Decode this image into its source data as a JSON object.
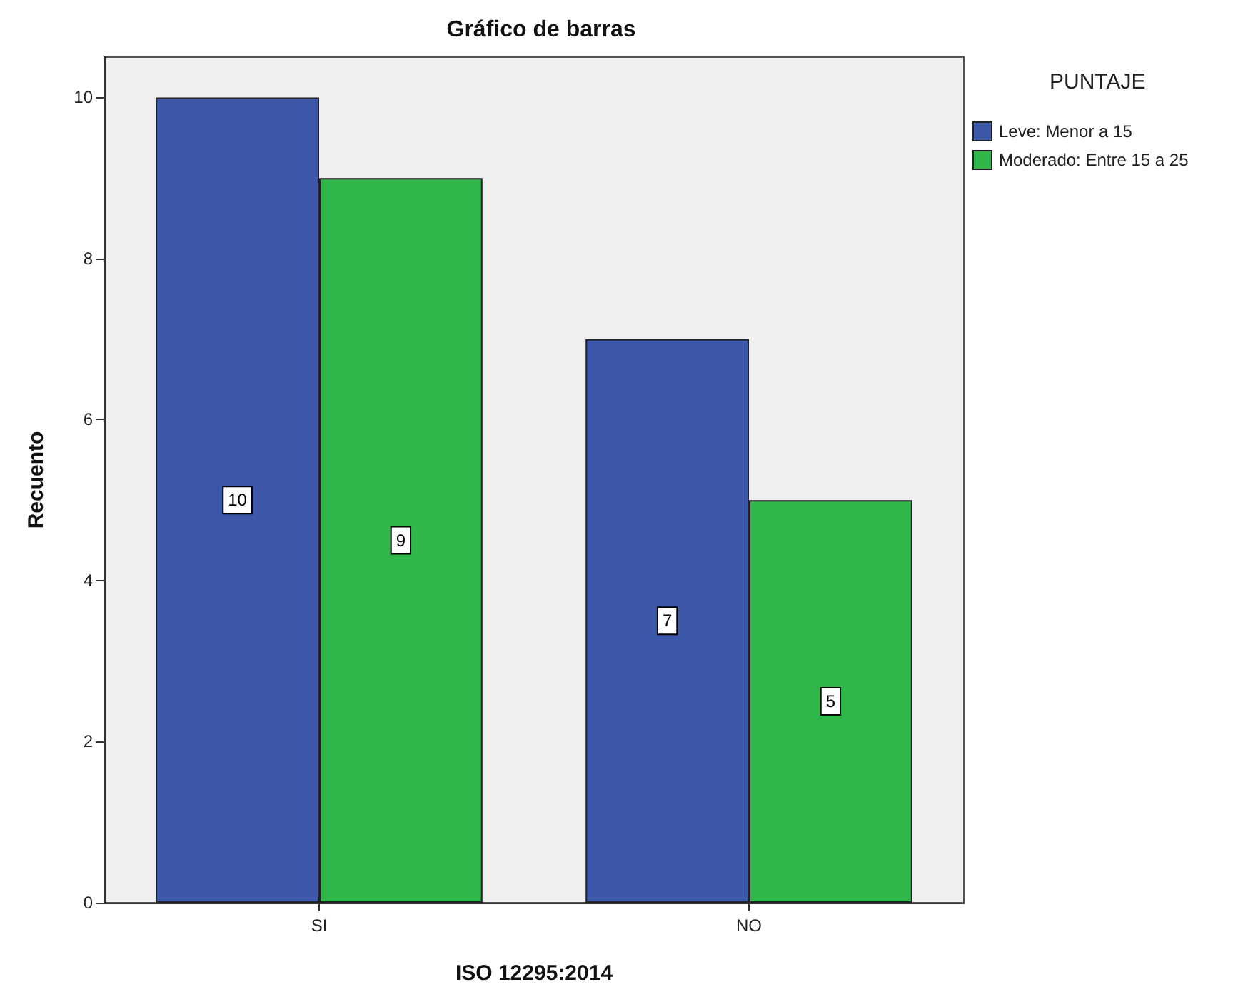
{
  "chart_data": {
    "type": "bar",
    "title": "Gráfico de barras",
    "xlabel": "ISO 12295:2014",
    "ylabel": "Recuento",
    "legend_title": "PUNTAJE",
    "categories": [
      "SI",
      "NO"
    ],
    "series": [
      {
        "name": "Leve: Menor a 15",
        "color": "#3e58a9",
        "values": [
          10,
          7
        ]
      },
      {
        "name": "Moderado: Entre 15 a 25",
        "color": "#2fb74a",
        "values": [
          9,
          5
        ]
      }
    ],
    "ylim": [
      0,
      10.5
    ],
    "yticks": [
      0,
      2,
      4,
      6,
      8,
      10
    ],
    "grid": false,
    "legend": "top right",
    "data_labels": true
  }
}
